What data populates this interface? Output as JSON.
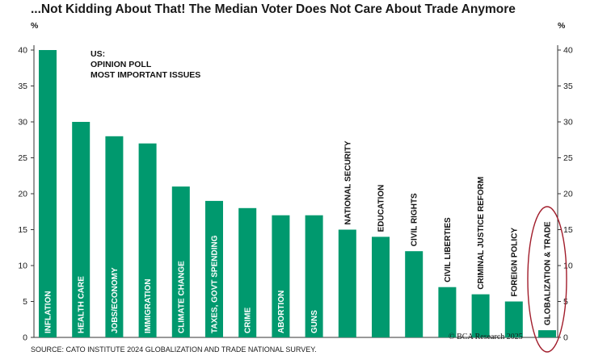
{
  "colors": {
    "bar": "#00996e",
    "axis": "#333333",
    "highlight": "#a11d2b",
    "label_light": "#ffffff",
    "label_dark": "#111111"
  },
  "chart_data": {
    "type": "bar",
    "title": "...Not Kidding About That! The Median Voter Does Not Care About Trade Anymore",
    "y_unit_left": "%",
    "y_unit_right": "%",
    "annotation": [
      "US:",
      "OPINION POLL",
      "MOST IMPORTANT ISSUES"
    ],
    "ylim": [
      0,
      40
    ],
    "yticks": [
      0,
      5,
      10,
      15,
      20,
      25,
      30,
      35,
      40
    ],
    "categories": [
      "INFLATION",
      "HEALTH CARE",
      "JOBS/ECONOMY",
      "IMMIGRATION",
      "CLIMATE CHANGE",
      "TAXES, GOVT SPENDING",
      "CRIME",
      "ABORTION",
      "GUNS",
      "NATIONAL SECURITY",
      "EDUCATION",
      "CIVIL RIGHTS",
      "CIVIL LIBERTIES",
      "CRIMINAL JUSTICE REFORM",
      "FOREIGN POLICY",
      "GLOBALIZATION & TRADE"
    ],
    "values": [
      40,
      30,
      28,
      27,
      21,
      19,
      18,
      17,
      17,
      15,
      14,
      12,
      7,
      6,
      5,
      1
    ],
    "label_inside": [
      true,
      true,
      true,
      true,
      true,
      true,
      true,
      true,
      true,
      false,
      false,
      false,
      false,
      false,
      false,
      false
    ],
    "highlighted_category": "GLOBALIZATION & TRADE",
    "source": "SOURCE: CATO INSTITUTE 2024 GLOBALIZATION AND TRADE NATIONAL SURVEY.",
    "copyright": "© BCA Research 2025"
  }
}
